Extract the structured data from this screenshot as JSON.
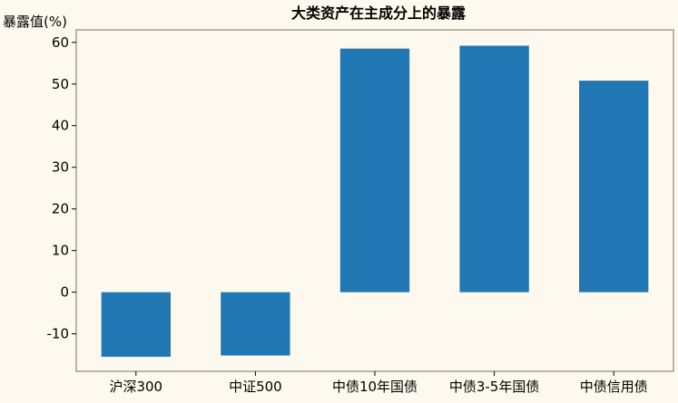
{
  "chart_data": {
    "type": "bar",
    "title": "大类资产在主成分上的暴露",
    "ylabel": "暴露值(%)",
    "xlabel": "",
    "categories": [
      "沪深300",
      "中证500",
      "中债10年国债",
      "中债3-5年国债",
      "中债信用债"
    ],
    "values": [
      -15.5,
      -15.2,
      58.5,
      59.2,
      50.8
    ],
    "ylim": [
      -19,
      63
    ],
    "yticks": [
      -10,
      0,
      10,
      20,
      30,
      40,
      50,
      60
    ],
    "grid": false,
    "legend": "none",
    "colors": {
      "bar": "#2077b4",
      "background": "#fdf9ee",
      "frame": "#b9b4a8"
    }
  }
}
